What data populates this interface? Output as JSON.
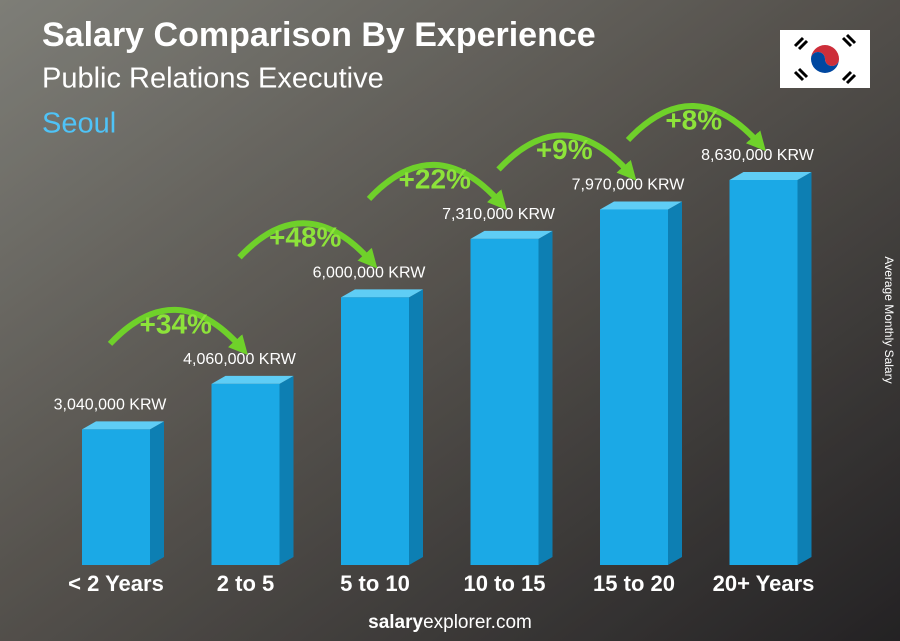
{
  "chart_data": {
    "type": "bar",
    "title": "Salary Comparison By Experience",
    "subtitle": "Public Relations Executive",
    "location": "Seoul",
    "axis_label": "Average Monthly Salary",
    "categories": [
      "< 2 Years",
      "2 to 5",
      "5 to 10",
      "10 to 15",
      "15 to 20",
      "20+ Years"
    ],
    "values": [
      3040000,
      4060000,
      6000000,
      7310000,
      7970000,
      8630000
    ],
    "value_labels": [
      "3,040,000 KRW",
      "4,060,000 KRW",
      "6,000,000 KRW",
      "7,310,000 KRW",
      "7,970,000 KRW",
      "8,630,000 KRW"
    ],
    "changes": [
      "+34%",
      "+48%",
      "+22%",
      "+9%",
      "+8%"
    ],
    "color": "#1ba9e6",
    "footer_bold": "salary",
    "footer_rest": "explorer.com"
  }
}
